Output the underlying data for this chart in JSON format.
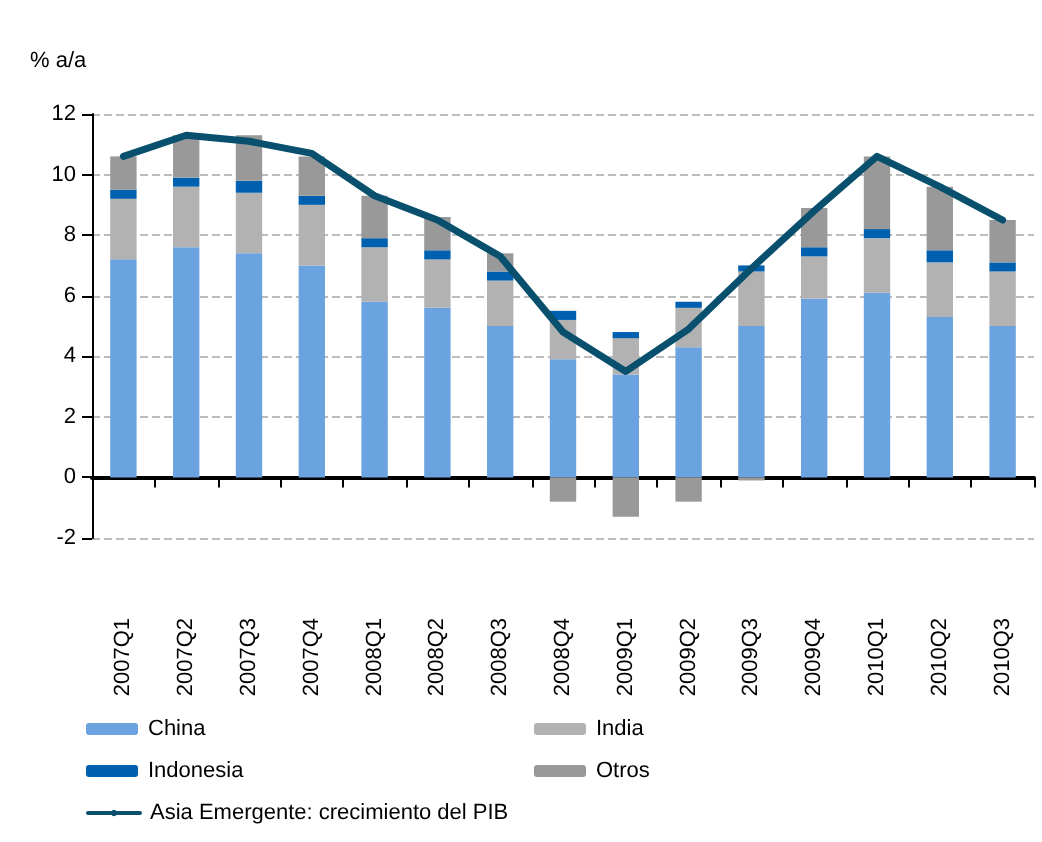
{
  "chart_data": {
    "type": "bar",
    "stacked": true,
    "ylabel": "% a/a",
    "categories": [
      "2007Q1",
      "2007Q2",
      "2007Q3",
      "2007Q4",
      "2008Q1",
      "2008Q2",
      "2008Q3",
      "2008Q4",
      "2009Q1",
      "2009Q2",
      "2009Q3",
      "2009Q4",
      "2010Q1",
      "2010Q2",
      "2010Q3"
    ],
    "series": [
      {
        "name": "China",
        "color": "#6aa3e0",
        "values": [
          7.2,
          7.6,
          7.4,
          7.0,
          5.8,
          5.6,
          5.0,
          3.9,
          3.4,
          4.3,
          5.0,
          5.9,
          6.1,
          5.3,
          5.0
        ]
      },
      {
        "name": "India",
        "color": "#b2b2b2",
        "values": [
          2.0,
          2.0,
          2.0,
          2.0,
          1.8,
          1.6,
          1.5,
          1.3,
          1.2,
          1.3,
          1.8,
          1.4,
          1.8,
          1.8,
          1.8
        ]
      },
      {
        "name": "Indonesia",
        "color": "#0060b0",
        "values": [
          0.3,
          0.3,
          0.4,
          0.3,
          0.3,
          0.3,
          0.3,
          0.3,
          0.2,
          0.2,
          0.2,
          0.3,
          0.3,
          0.4,
          0.3
        ]
      },
      {
        "name": "Otros",
        "color": "#999999",
        "values": [
          1.1,
          1.4,
          1.5,
          1.3,
          1.4,
          1.1,
          0.6,
          -0.8,
          -1.3,
          -0.8,
          -0.1,
          1.3,
          2.4,
          2.1,
          1.4
        ]
      },
      {
        "name": "Asia Emergente: crecimiento del PIB",
        "type": "line",
        "color": "#08506e",
        "values": [
          10.6,
          11.3,
          11.1,
          10.7,
          9.3,
          8.5,
          7.3,
          4.8,
          3.5,
          4.9,
          6.9,
          8.8,
          10.6,
          9.6,
          8.5
        ]
      }
    ],
    "ylim": [
      -2,
      12
    ],
    "yticks": [
      -2,
      0,
      2,
      4,
      6,
      8,
      10,
      12
    ],
    "grid": "y",
    "legend": "bottom",
    "marker": "none",
    "line_style": "solid"
  }
}
